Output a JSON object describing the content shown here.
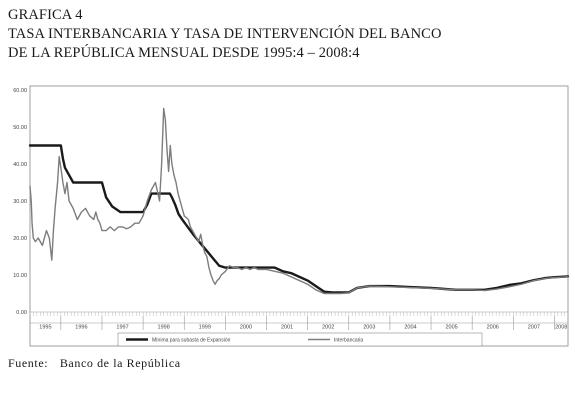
{
  "figure": {
    "label": "GRAFICA 4",
    "title_line1": "TASA INTERBANCARIA Y TASA DE INTERVENCIÓN DEL BANCO",
    "title_line2": "DE LA REPÚBLICA MENSUAL DESDE 1995:4 – 2008:4",
    "source_label": "Fuente:",
    "source_value": "Banco de la República"
  },
  "chart_data": {
    "type": "line",
    "title": "TASA INTERBANCARIA Y TASA DE INTERVENCIÓN DEL BANCO DE LA REPÚBLICA MENSUAL DESDE 1995:4 – 2008:4",
    "xlabel": "",
    "ylabel": "",
    "ylim": [
      0,
      60
    ],
    "xlim": [
      1995.25,
      2008.33
    ],
    "yticks": [
      "0.00",
      "10.00",
      "20.00",
      "30.00",
      "40.00",
      "50.00",
      "60.00"
    ],
    "year_labels": [
      "1995",
      "1996",
      "1997",
      "1998",
      "1999",
      "2000",
      "2001",
      "2002",
      "2003",
      "2004",
      "2005",
      "2006",
      "2007",
      "2008"
    ],
    "grid": false,
    "legend_position": "bottom",
    "series": [
      {
        "name": "Mínima para subasta de Expansión",
        "color": "#1a1a1a",
        "x": [
          1995.25,
          1995.4,
          1995.55,
          1995.7,
          1995.85,
          1996.0,
          1996.05,
          1996.1,
          1996.2,
          1996.3,
          1996.45,
          1996.6,
          1996.75,
          1996.9,
          1997.0,
          1997.1,
          1997.25,
          1997.45,
          1997.6,
          1997.75,
          1997.9,
          1998.0,
          1998.1,
          1998.2,
          1998.35,
          1998.5,
          1998.6,
          1998.65,
          1998.7,
          1998.78,
          1998.86,
          1998.95,
          1999.05,
          1999.15,
          1999.25,
          1999.4,
          1999.55,
          1999.7,
          1999.85,
          2000.0,
          2000.2,
          2000.4,
          2000.6,
          2000.8,
          2001.0,
          2001.2,
          2001.4,
          2001.6,
          2001.8,
          2002.0,
          2002.2,
          2002.4,
          2002.6,
          2002.8,
          2003.0,
          2003.2,
          2003.5,
          2003.8,
          2004.0,
          2004.5,
          2005.0,
          2005.3,
          2005.6,
          2006.0,
          2006.3,
          2006.6,
          2006.9,
          2007.2,
          2007.5,
          2007.8,
          2008.0,
          2008.33
        ],
        "y": [
          45,
          45,
          45,
          45,
          45,
          45,
          41.5,
          39,
          37,
          35,
          35,
          35,
          35,
          35,
          35,
          31,
          28.5,
          27,
          27,
          27,
          27,
          27,
          29,
          32,
          32,
          32,
          32,
          32,
          31,
          29,
          26.5,
          25,
          23.5,
          22,
          20.5,
          18.5,
          16.5,
          14.5,
          12.5,
          12,
          12,
          12,
          12,
          12,
          12,
          12,
          11,
          10.5,
          9.5,
          8.5,
          7,
          5.5,
          5.3,
          5.3,
          5.3,
          6.5,
          7,
          7,
          7,
          6.75,
          6.5,
          6.25,
          6,
          6,
          6,
          6.5,
          7.3,
          7.75,
          8.6,
          9.2,
          9.4,
          9.6
        ]
      },
      {
        "name": "Interbancaria",
        "color": "#7d7d7d",
        "x": [
          1995.25,
          1995.28,
          1995.3,
          1995.33,
          1995.38,
          1995.45,
          1995.55,
          1995.65,
          1995.72,
          1995.78,
          1995.82,
          1995.86,
          1995.92,
          1995.96,
          1996.0,
          1996.05,
          1996.1,
          1996.15,
          1996.2,
          1996.3,
          1996.4,
          1996.5,
          1996.6,
          1996.7,
          1996.8,
          1996.85,
          1996.9,
          1996.95,
          1997.0,
          1997.1,
          1997.2,
          1997.3,
          1997.4,
          1997.5,
          1997.6,
          1997.7,
          1997.8,
          1997.9,
          1998.0,
          1998.1,
          1998.2,
          1998.3,
          1998.4,
          1998.45,
          1998.5,
          1998.54,
          1998.58,
          1998.62,
          1998.66,
          1998.7,
          1998.75,
          1998.8,
          1998.85,
          1998.9,
          1998.95,
          1999.0,
          1999.1,
          1999.15,
          1999.2,
          1999.25,
          1999.3,
          1999.35,
          1999.4,
          1999.45,
          1999.5,
          1999.55,
          1999.6,
          1999.65,
          1999.7,
          1999.75,
          1999.8,
          1999.85,
          1999.9,
          2000.0,
          2000.1,
          2000.2,
          2000.3,
          2000.4,
          2000.5,
          2000.6,
          2000.7,
          2000.8,
          2001.0,
          2001.2,
          2001.4,
          2001.6,
          2001.8,
          2002.0,
          2002.2,
          2002.4,
          2002.6,
          2002.8,
          2003.0,
          2003.2,
          2003.5,
          2003.8,
          2004.0,
          2004.5,
          2005.0,
          2005.3,
          2005.6,
          2006.0,
          2006.3,
          2006.6,
          2006.9,
          2007.2,
          2007.5,
          2007.8,
          2008.0,
          2008.33
        ],
        "y": [
          34,
          30,
          24,
          20,
          19,
          20,
          18,
          22,
          20,
          14,
          22,
          28,
          35,
          42,
          39,
          35,
          32,
          35,
          30,
          28,
          25,
          27,
          28,
          26,
          25,
          27,
          25,
          24,
          22,
          22,
          23,
          22,
          23,
          23,
          22.5,
          23,
          24,
          24,
          26,
          30,
          33,
          35,
          30,
          40,
          55,
          52,
          44,
          38,
          45,
          40,
          37,
          35,
          32,
          30,
          28,
          26,
          25,
          23,
          22,
          21,
          20,
          19,
          21,
          18,
          16,
          15,
          12,
          10,
          8.5,
          7.5,
          8.5,
          9,
          10,
          11,
          12.5,
          12,
          12,
          11.5,
          12,
          11.5,
          12,
          11.5,
          11.5,
          11,
          10.5,
          9.5,
          8.5,
          7.5,
          6,
          5,
          5,
          5,
          5.2,
          6.5,
          7,
          6.9,
          6.8,
          6.6,
          6.4,
          6.2,
          6,
          6,
          5.8,
          6.2,
          6.8,
          7.5,
          8.5,
          9.1,
          9.3,
          9.5
        ]
      }
    ]
  }
}
